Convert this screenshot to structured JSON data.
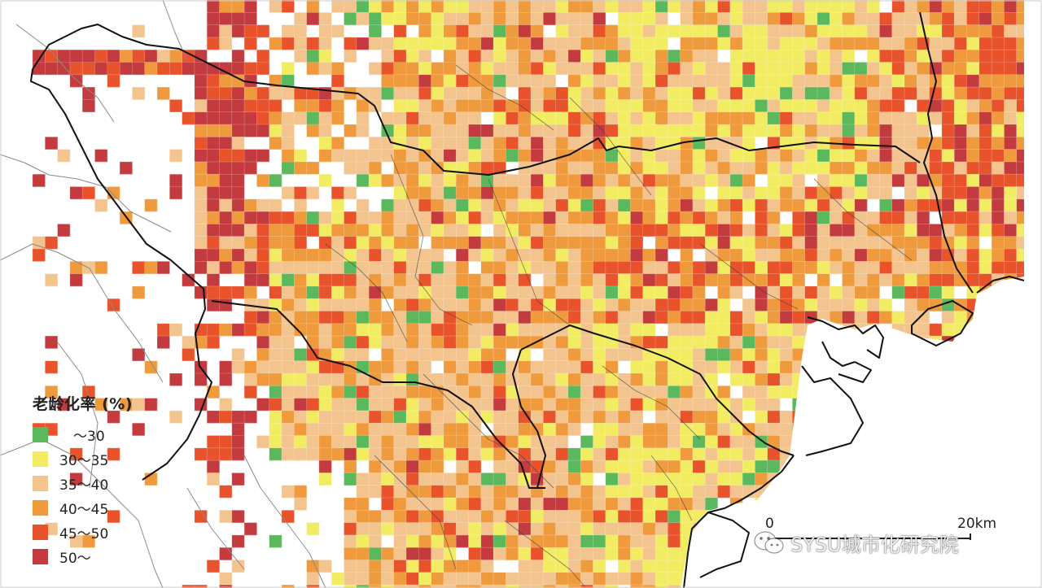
{
  "legend": {
    "title": "老龄化率 (%)",
    "items": [
      {
        "label": "　～30",
        "color": "#5cb85c"
      },
      {
        "label": "30～35",
        "color": "#f2ec63"
      },
      {
        "label": "35～40",
        "color": "#f3c48e"
      },
      {
        "label": "40～45",
        "color": "#ef9a3c"
      },
      {
        "label": "45～50",
        "color": "#e8532c"
      },
      {
        "label": "50～",
        "color": "#c33b3f"
      }
    ]
  },
  "scale": {
    "start": "0",
    "end": "20km"
  },
  "watermark": {
    "text": "SYSU城市化研究院",
    "icon": "wechat-icon"
  },
  "map": {
    "background_color": "#ffffff",
    "boundary_color": "#111111",
    "minor_boundary_color": "#8a8a8a"
  }
}
